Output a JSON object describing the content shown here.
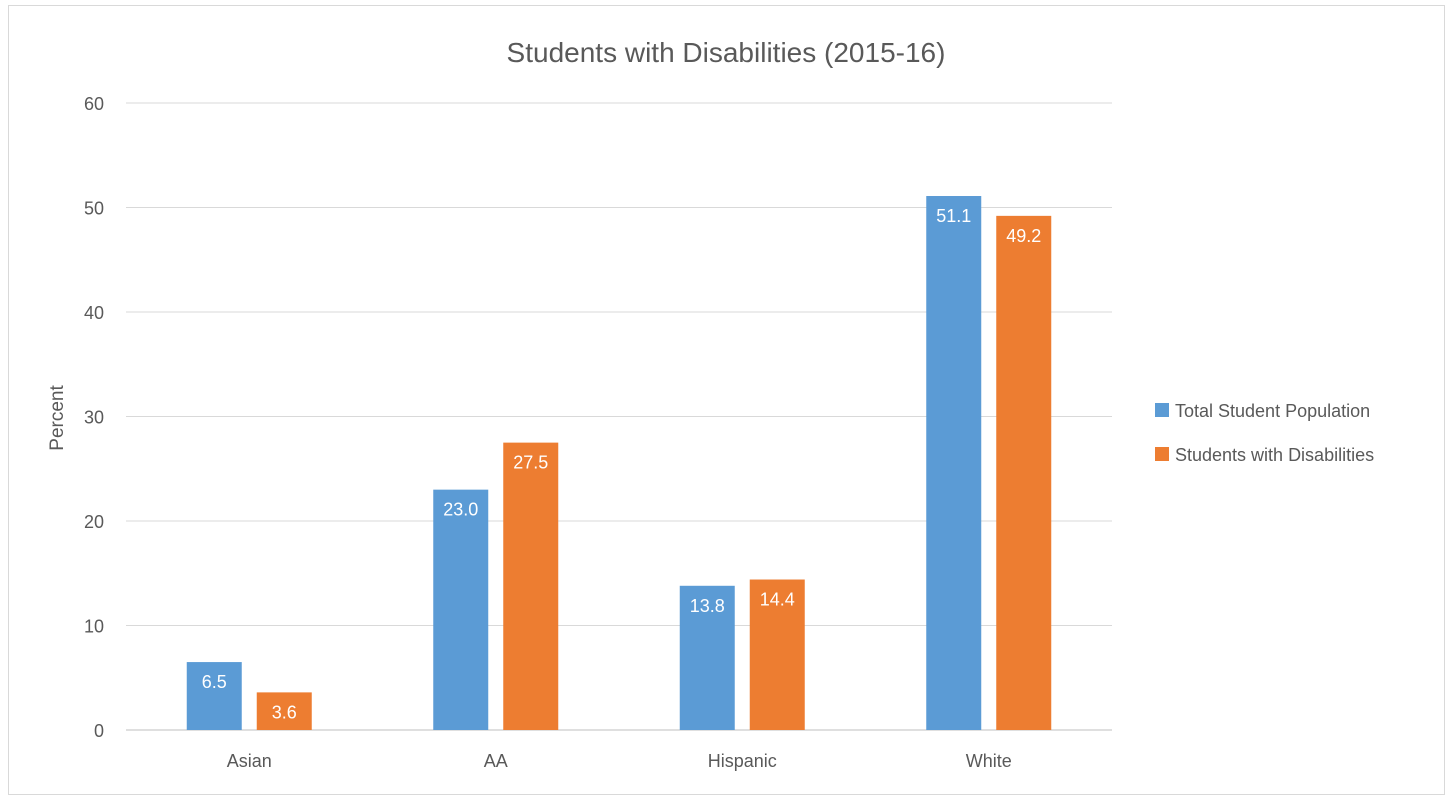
{
  "chart_data": {
    "type": "bar",
    "title": "Students with Disabilities (2015-16)",
    "xlabel": "",
    "ylabel": "Percent",
    "categories": [
      "Asian",
      "AA",
      "Hispanic",
      "White"
    ],
    "series": [
      {
        "name": "Total Student Population",
        "color": "#5b9bd5",
        "values": [
          6.5,
          23.0,
          13.8,
          51.1
        ],
        "labels": [
          "6.5",
          "23.0",
          "13.8",
          "51.1"
        ]
      },
      {
        "name": "Students with Disabilities",
        "color": "#ed7d31",
        "values": [
          3.6,
          27.5,
          14.4,
          49.2
        ],
        "labels": [
          "3.6",
          "27.5",
          "14.4",
          "49.2"
        ]
      }
    ],
    "ylim": [
      0,
      60
    ],
    "yticks": [
      0,
      10,
      20,
      30,
      40,
      50,
      60
    ],
    "ytick_labels": [
      "0",
      "10",
      "20",
      "30",
      "40",
      "50",
      "60"
    ],
    "grid": true,
    "legend": "right",
    "data_label_color": "#ffffff"
  }
}
